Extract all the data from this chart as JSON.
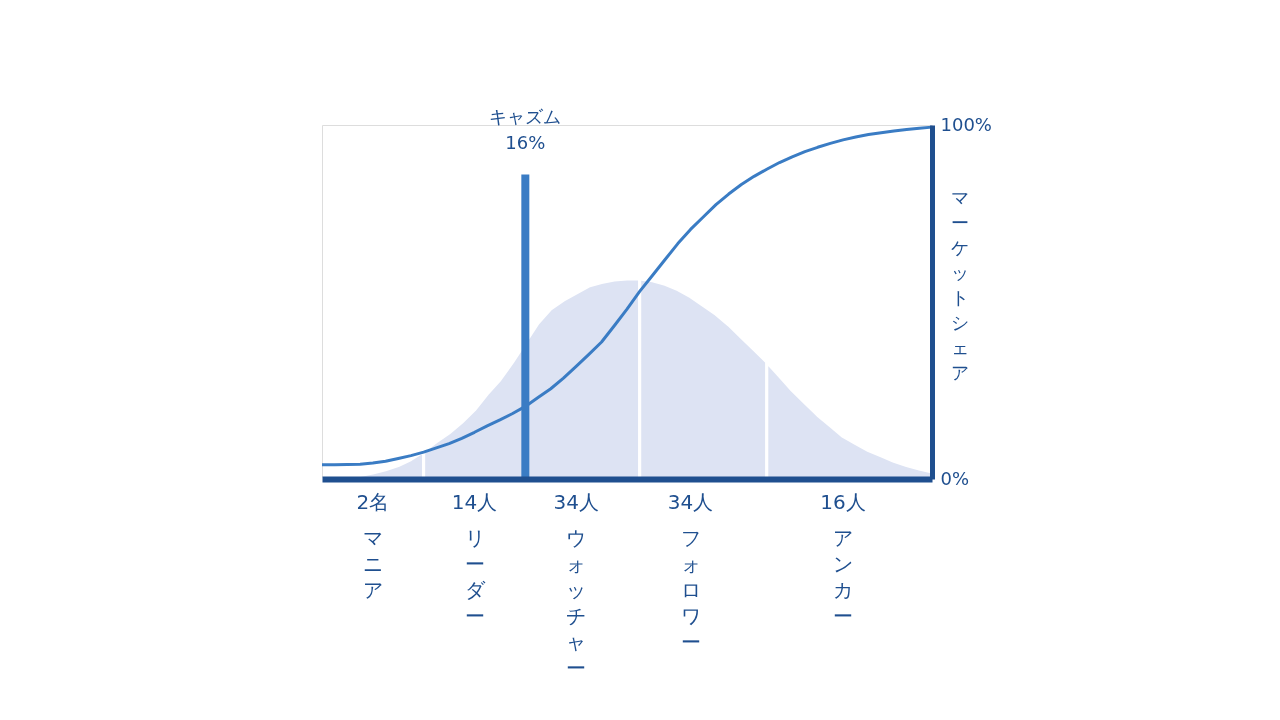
{
  "chart_data": {
    "type": "line",
    "ylabel": "マーケットシェア",
    "ylim": [
      0,
      100
    ],
    "yticks": [
      {
        "value": 0,
        "label": "0%"
      },
      {
        "value": 100,
        "label": "100%"
      }
    ],
    "categories": [
      null,
      null,
      null,
      null,
      "マニア",
      null,
      null,
      null,
      null,
      null,
      null,
      null,
      "リーダー",
      null,
      null,
      null,
      null,
      null,
      null,
      null,
      "ウォッチャー",
      null,
      null,
      null,
      null,
      null,
      null,
      null,
      null,
      "フォロワー",
      null,
      null,
      null,
      null,
      null,
      null,
      null,
      null,
      null,
      null,
      null,
      "アンカー",
      null,
      null,
      null,
      null,
      null,
      null,
      null
    ],
    "series": [
      {
        "type": "area",
        "color": "#dde3f3",
        "values": [
          0,
          0.4,
          0.7,
          1.0,
          1.7,
          2.6,
          3.8,
          5.5,
          7.8,
          null,
          null,
          null,
          null,
          null,
          null,
          null,
          null,
          null,
          null,
          null,
          null,
          null,
          null,
          null,
          null,
          null,
          null,
          null,
          null,
          null,
          null,
          null,
          null,
          null,
          null,
          null,
          null,
          null,
          null,
          null,
          null,
          null,
          null,
          null,
          null,
          null,
          null,
          null,
          null
        ]
      },
      {
        "type": "area",
        "color": "#dde3f3",
        "values": [
          null,
          null,
          null,
          null,
          null,
          null,
          null,
          null,
          7.8,
          10.5,
          13,
          16,
          19.5,
          24,
          28,
          33,
          null,
          44,
          48,
          50.5,
          52.5,
          54.5,
          55.5,
          56.2,
          56.5,
          56.5,
          null,
          null,
          null,
          null,
          null,
          null,
          null,
          null,
          null,
          null,
          null,
          null,
          null,
          null,
          null,
          null,
          null,
          null,
          null,
          null,
          null,
          null,
          null
        ]
      },
      {
        "type": "area",
        "color": "#dde3f3",
        "values": [
          null,
          null,
          null,
          null,
          null,
          null,
          null,
          null,
          null,
          null,
          null,
          null,
          null,
          null,
          null,
          null,
          null,
          null,
          null,
          null,
          null,
          null,
          null,
          null,
          null,
          56.5,
          56,
          55,
          53.5,
          51.5,
          49,
          46.5,
          43.5,
          40,
          36.5,
          33,
          null,
          null,
          null,
          null,
          null,
          null,
          null,
          null,
          null,
          null,
          null,
          null,
          null
        ]
      },
      {
        "type": "area",
        "color": "#dde3f3",
        "values": [
          null,
          null,
          null,
          null,
          null,
          null,
          null,
          null,
          null,
          null,
          null,
          null,
          null,
          null,
          null,
          null,
          null,
          null,
          null,
          null,
          null,
          null,
          null,
          null,
          null,
          null,
          null,
          null,
          null,
          null,
          null,
          null,
          null,
          null,
          null,
          33,
          29,
          25,
          21.5,
          18,
          15,
          12,
          10,
          8,
          6.5,
          5,
          3.8,
          2.8,
          2.0
        ]
      },
      {
        "color": "#3a7cc4",
        "values": [
          4.0,
          4.0,
          4.1,
          4.2,
          4.5,
          5.0,
          5.8,
          6.6,
          7.6,
          8.8,
          10.0,
          11.5,
          13.2,
          15.0,
          16.7,
          18.5,
          20.5,
          23,
          25.5,
          28.5,
          31.8,
          35.2,
          38.7,
          43.3,
          48,
          53,
          57.5,
          62,
          66.5,
          70.5,
          74,
          77.5,
          80.5,
          83.2,
          85.5,
          87.5,
          89.4,
          91,
          92.5,
          93.7,
          94.8,
          95.8,
          96.6,
          97.3,
          97.8,
          98.3,
          98.7,
          99.1,
          99.4
        ]
      },
      {
        "type": "bar",
        "color": "#3a7cc4",
        "values": [
          null,
          null,
          null,
          null,
          null,
          null,
          null,
          null,
          null,
          null,
          null,
          null,
          null,
          null,
          null,
          null,
          86,
          null,
          null,
          null,
          null,
          null,
          null,
          null,
          null,
          null,
          null,
          null,
          null,
          null,
          null,
          null,
          null,
          null,
          null,
          null,
          null,
          null,
          null,
          null,
          null,
          null,
          null,
          null,
          null,
          null,
          null,
          null,
          null
        ]
      }
    ],
    "annotations": [
      "キャズム",
      "16%",
      "2名",
      "14人",
      "34人",
      "34人",
      "16人"
    ],
    "grid": false
  }
}
